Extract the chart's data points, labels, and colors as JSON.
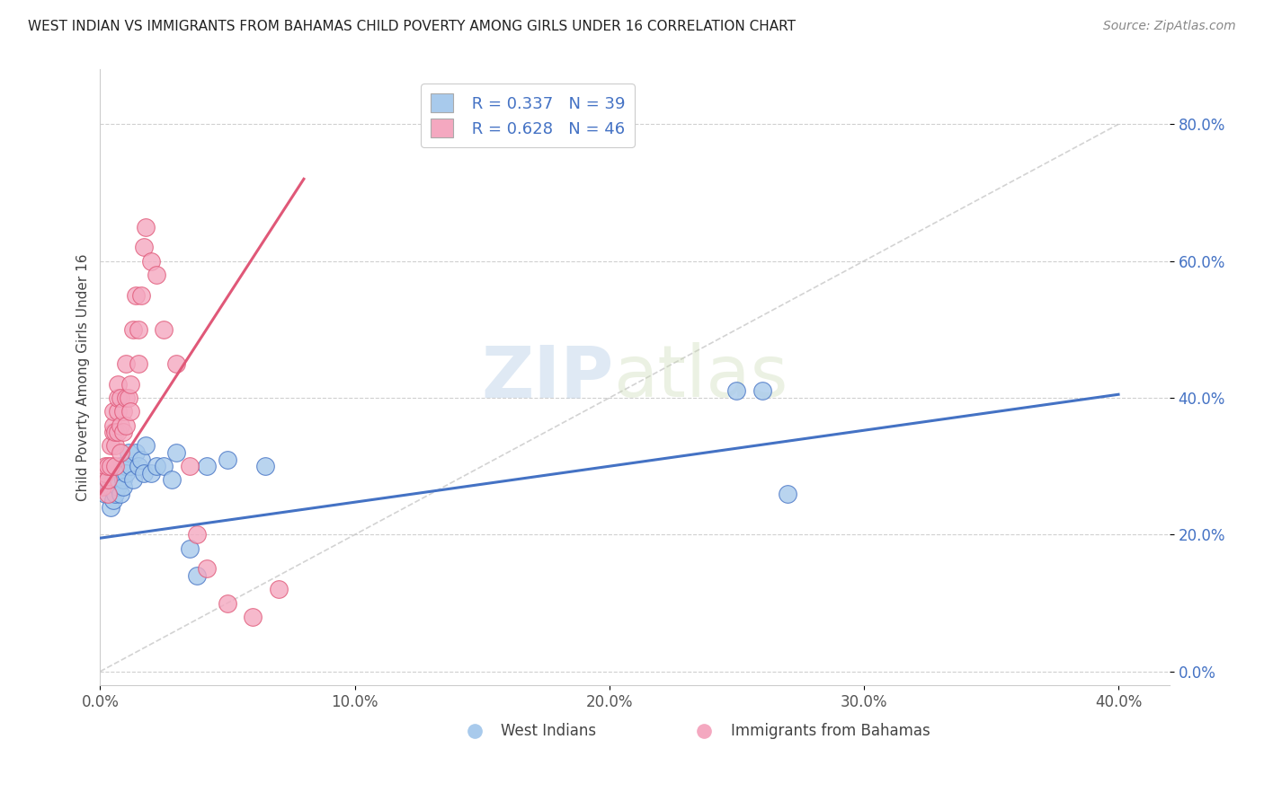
{
  "title": "WEST INDIAN VS IMMIGRANTS FROM BAHAMAS CHILD POVERTY AMONG GIRLS UNDER 16 CORRELATION CHART",
  "source": "Source: ZipAtlas.com",
  "xlim": [
    0.0,
    0.42
  ],
  "ylim": [
    -0.02,
    0.88
  ],
  "ylabel": "Child Poverty Among Girls Under 16",
  "color_blue": "#A8CAEC",
  "color_pink": "#F4A8C0",
  "line_blue": "#4472C4",
  "line_pink": "#E05878",
  "watermark_zip": "ZIP",
  "watermark_atlas": "atlas",
  "west_indians_x": [
    0.002,
    0.003,
    0.003,
    0.004,
    0.004,
    0.005,
    0.005,
    0.006,
    0.006,
    0.007,
    0.007,
    0.008,
    0.008,
    0.009,
    0.009,
    0.01,
    0.01,
    0.011,
    0.012,
    0.013,
    0.014,
    0.015,
    0.016,
    0.017,
    0.018,
    0.02,
    0.022,
    0.025,
    0.028,
    0.03,
    0.035,
    0.038,
    0.042,
    0.05,
    0.065,
    0.25,
    0.26,
    0.27
  ],
  "west_indians_y": [
    0.26,
    0.27,
    0.28,
    0.24,
    0.27,
    0.25,
    0.28,
    0.26,
    0.29,
    0.27,
    0.28,
    0.3,
    0.26,
    0.28,
    0.27,
    0.3,
    0.29,
    0.32,
    0.3,
    0.28,
    0.32,
    0.3,
    0.31,
    0.29,
    0.33,
    0.29,
    0.3,
    0.3,
    0.28,
    0.32,
    0.18,
    0.14,
    0.3,
    0.31,
    0.3,
    0.41,
    0.41,
    0.26
  ],
  "bahamas_x": [
    0.001,
    0.002,
    0.002,
    0.003,
    0.003,
    0.003,
    0.004,
    0.004,
    0.005,
    0.005,
    0.005,
    0.006,
    0.006,
    0.006,
    0.007,
    0.007,
    0.007,
    0.007,
    0.008,
    0.008,
    0.008,
    0.009,
    0.009,
    0.01,
    0.01,
    0.01,
    0.011,
    0.012,
    0.012,
    0.013,
    0.014,
    0.015,
    0.015,
    0.016,
    0.017,
    0.018,
    0.02,
    0.022,
    0.025,
    0.03,
    0.035,
    0.038,
    0.042,
    0.05,
    0.06,
    0.07
  ],
  "bahamas_y": [
    0.27,
    0.29,
    0.3,
    0.26,
    0.28,
    0.3,
    0.3,
    0.33,
    0.35,
    0.36,
    0.38,
    0.3,
    0.33,
    0.35,
    0.35,
    0.38,
    0.4,
    0.42,
    0.32,
    0.36,
    0.4,
    0.35,
    0.38,
    0.36,
    0.4,
    0.45,
    0.4,
    0.38,
    0.42,
    0.5,
    0.55,
    0.45,
    0.5,
    0.55,
    0.62,
    0.65,
    0.6,
    0.58,
    0.5,
    0.45,
    0.3,
    0.2,
    0.15,
    0.1,
    0.08,
    0.12
  ],
  "blue_line_x": [
    0.0,
    0.4
  ],
  "blue_line_y": [
    0.195,
    0.405
  ],
  "pink_line_x": [
    0.0,
    0.08
  ],
  "pink_line_y": [
    0.26,
    0.72
  ],
  "diag_line_x": [
    0.0,
    0.4
  ],
  "diag_line_y": [
    0.0,
    0.8
  ],
  "x_ticks": [
    0.0,
    0.1,
    0.2,
    0.3,
    0.4
  ],
  "y_ticks": [
    0.0,
    0.2,
    0.4,
    0.6,
    0.8
  ]
}
